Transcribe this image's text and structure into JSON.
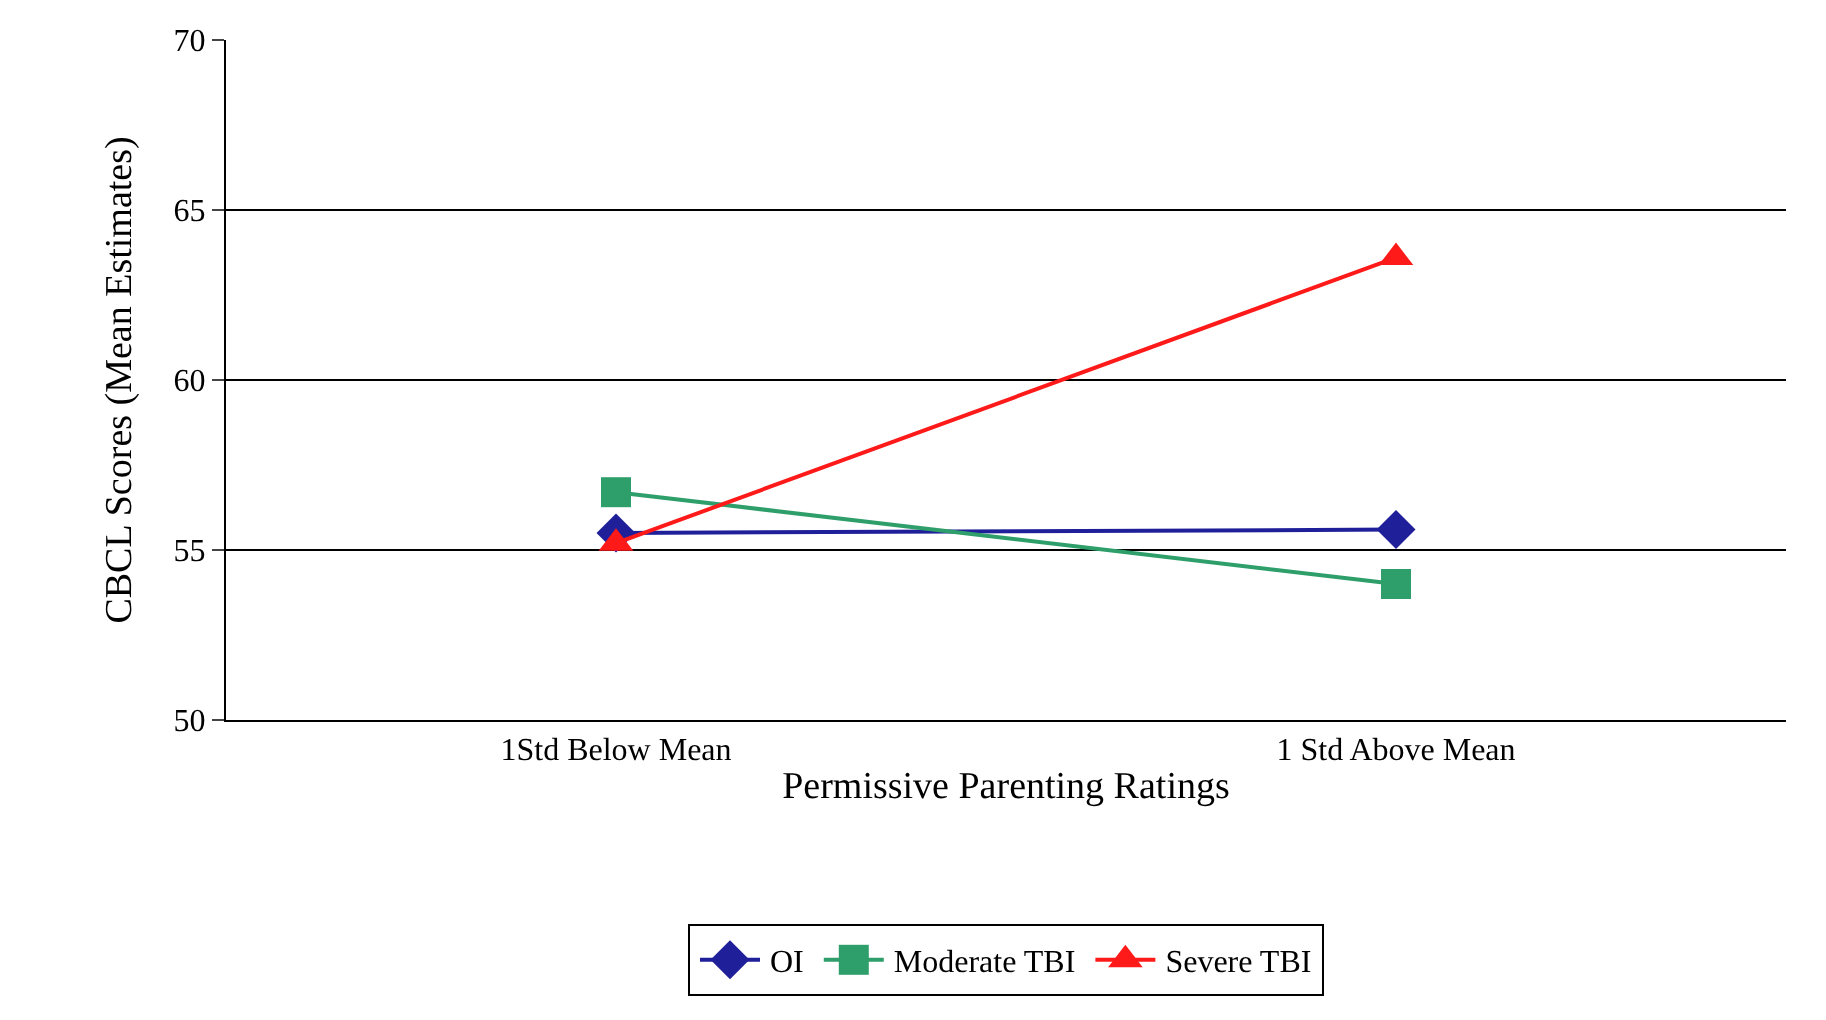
{
  "chart_data": {
    "type": "line",
    "xlabel": "Permissive Parenting Ratings",
    "ylabel": "CBCL Scores (Mean Estimates)",
    "categories": [
      "1Std Below Mean",
      "1 Std Above Mean"
    ],
    "series": [
      {
        "name": "OI",
        "color": "#1f1f9a",
        "values": [
          55.5,
          55.6
        ],
        "marker": "diamond"
      },
      {
        "name": "Moderate TBI",
        "color": "#2e9e6a",
        "values": [
          56.7,
          54.0
        ],
        "marker": "square"
      },
      {
        "name": "Severe TBI",
        "color": "#ff1a1a",
        "values": [
          55.2,
          63.6
        ],
        "marker": "triangle"
      }
    ],
    "ylim": [
      50,
      70
    ],
    "yticks": [
      50,
      55,
      60,
      65,
      70
    ],
    "grid": "y",
    "legend": "bottom",
    "line_style": "solid"
  }
}
